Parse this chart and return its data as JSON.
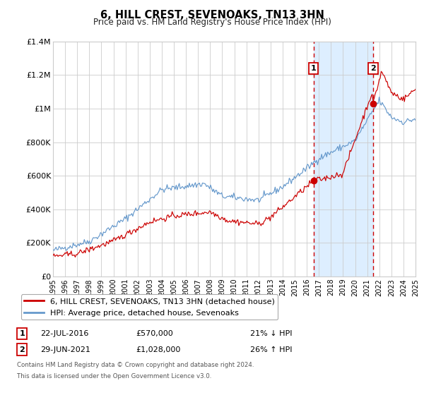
{
  "title": "6, HILL CREST, SEVENOAKS, TN13 3HN",
  "subtitle": "Price paid vs. HM Land Registry's House Price Index (HPI)",
  "red_label": "6, HILL CREST, SEVENOAKS, TN13 3HN (detached house)",
  "blue_label": "HPI: Average price, detached house, Sevenoaks",
  "annotation1_date": "22-JUL-2016",
  "annotation1_price": "£570,000",
  "annotation1_hpi": "21% ↓ HPI",
  "annotation2_date": "29-JUN-2021",
  "annotation2_price": "£1,028,000",
  "annotation2_hpi": "26% ↑ HPI",
  "sale1_x": 2016.55,
  "sale1_y": 570000,
  "sale2_x": 2021.49,
  "sale2_y": 1028000,
  "vline1_x": 2016.55,
  "vline2_x": 2021.49,
  "xmin": 1995,
  "xmax": 2025,
  "ymin": 0,
  "ymax": 1400000,
  "yticks": [
    0,
    200000,
    400000,
    600000,
    800000,
    1000000,
    1200000,
    1400000
  ],
  "ytick_labels": [
    "£0",
    "£200K",
    "£400K",
    "£600K",
    "£800K",
    "£1M",
    "£1.2M",
    "£1.4M"
  ],
  "red_color": "#cc0000",
  "blue_color": "#6699cc",
  "shade_color": "#ddeeff",
  "grid_color": "#cccccc",
  "footnote1": "Contains HM Land Registry data © Crown copyright and database right 2024.",
  "footnote2": "This data is licensed under the Open Government Licence v3.0."
}
